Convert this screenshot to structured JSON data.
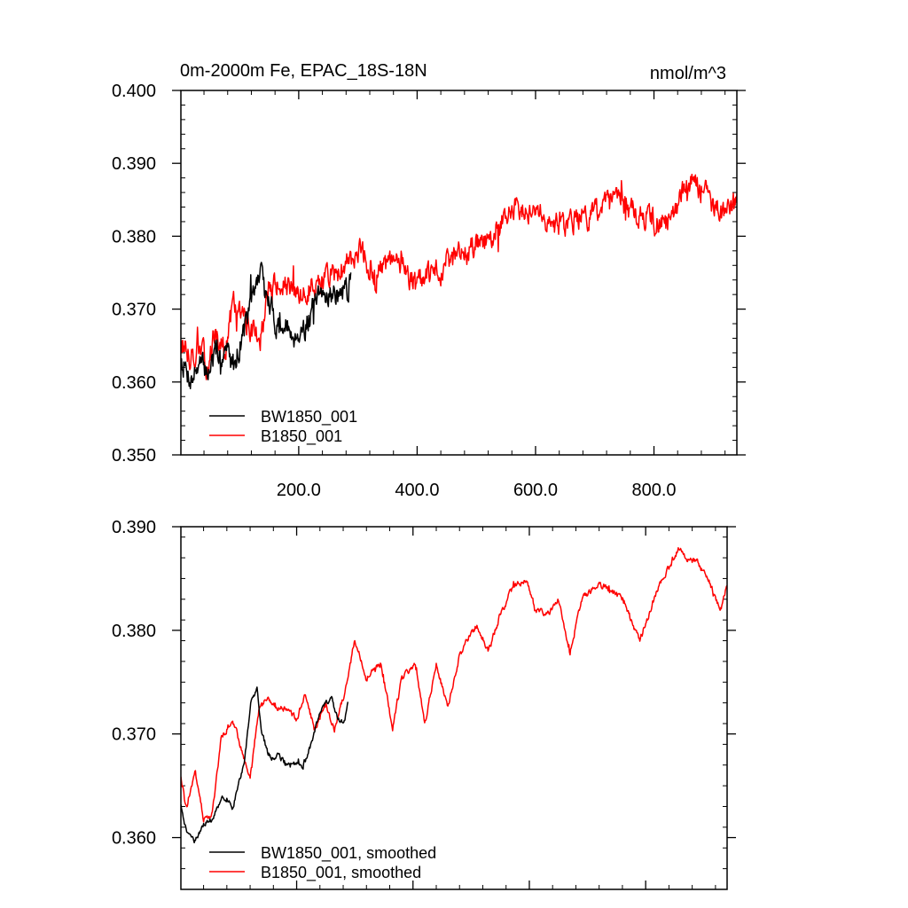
{
  "figure": {
    "title_left": "0m-2000m Fe, EPAC_18S-18N",
    "title_right": "nmol/m^3"
  },
  "chart_data": [
    {
      "type": "line",
      "panel": "top",
      "title": "0m-2000m Fe, EPAC_18S-18N",
      "units": "nmol/m^3",
      "xlim": [
        1,
        940
      ],
      "ylim": [
        0.35,
        0.4
      ],
      "x_ticks": [
        200,
        400,
        600,
        800
      ],
      "x_tick_labels": [
        "200.0",
        "400.0",
        "600.0",
        "800.0"
      ],
      "y_ticks": [
        0.35,
        0.36,
        0.37,
        0.38,
        0.39,
        0.4
      ],
      "y_tick_labels": [
        "0.350",
        "0.360",
        "0.370",
        "0.380",
        "0.390",
        "0.400"
      ],
      "legend": "bottom-left",
      "series": [
        {
          "name": "BW1850_001",
          "color": "#000000",
          "x_start": 1,
          "x_end": 288,
          "anchor_x": [
            1,
            10,
            20,
            30,
            45,
            60,
            75,
            90,
            105,
            120,
            135,
            145,
            160,
            175,
            190,
            210,
            230,
            250,
            270,
            288
          ],
          "anchor_y": [
            0.3635,
            0.3615,
            0.3605,
            0.3625,
            0.3615,
            0.3635,
            0.3645,
            0.3625,
            0.3665,
            0.3705,
            0.3755,
            0.3715,
            0.3685,
            0.3675,
            0.3665,
            0.3675,
            0.3705,
            0.3725,
            0.3715,
            0.3735
          ],
          "noise": 0.0025,
          "seed": 7
        },
        {
          "name": "B1850_001",
          "color": "#ff0000",
          "x_start": 1,
          "x_end": 940,
          "anchor_x": [
            1,
            15,
            30,
            45,
            60,
            75,
            90,
            105,
            120,
            135,
            150,
            175,
            200,
            225,
            250,
            275,
            300,
            330,
            360,
            400,
            440,
            480,
            520,
            560,
            600,
            630,
            670,
            700,
            740,
            780,
            820,
            860,
            880,
            900,
            920,
            940
          ],
          "anchor_y": [
            0.3655,
            0.3635,
            0.3645,
            0.3625,
            0.3665,
            0.3645,
            0.3705,
            0.369,
            0.3675,
            0.3665,
            0.373,
            0.373,
            0.3715,
            0.3735,
            0.3745,
            0.3755,
            0.3785,
            0.3745,
            0.3765,
            0.3735,
            0.3755,
            0.3775,
            0.3795,
            0.3835,
            0.3845,
            0.3815,
            0.3825,
            0.3835,
            0.3845,
            0.3825,
            0.3815,
            0.3875,
            0.3865,
            0.3845,
            0.3825,
            0.3845
          ],
          "noise": 0.0024,
          "seed": 13
        }
      ]
    },
    {
      "type": "line",
      "panel": "bottom",
      "xlim": [
        1,
        940
      ],
      "ylim": [
        0.355,
        0.39
      ],
      "x_ticks": [
        200,
        400,
        600,
        800
      ],
      "y_ticks": [
        0.36,
        0.37,
        0.38,
        0.39
      ],
      "y_tick_labels": [
        "0.360",
        "0.370",
        "0.380",
        "0.390"
      ],
      "legend": "bottom-left",
      "series": [
        {
          "name": "BW1850_001, smoothed",
          "color": "#000000",
          "x_start": 1,
          "x_end": 288,
          "anchor_x": [
            1,
            10,
            25,
            40,
            55,
            70,
            80,
            90,
            100,
            110,
            122,
            132,
            140,
            150,
            160,
            170,
            180,
            200,
            210,
            225,
            240,
            250,
            260,
            270,
            280,
            288
          ],
          "anchor_y": [
            0.3633,
            0.3607,
            0.3597,
            0.3613,
            0.3618,
            0.3637,
            0.3638,
            0.3628,
            0.3653,
            0.3673,
            0.3732,
            0.3743,
            0.3702,
            0.3683,
            0.3675,
            0.368,
            0.367,
            0.3672,
            0.3668,
            0.369,
            0.3722,
            0.373,
            0.3735,
            0.3715,
            0.3712,
            0.3728
          ],
          "noise": 0.00035,
          "seed": 21
        },
        {
          "name": "B1850_001, smoothed",
          "color": "#ff0000",
          "x_start": 1,
          "x_end": 940,
          "anchor_x": [
            1,
            10,
            25,
            40,
            55,
            70,
            90,
            105,
            120,
            135,
            150,
            165,
            180,
            200,
            215,
            230,
            250,
            265,
            285,
            300,
            320,
            345,
            365,
            380,
            405,
            420,
            440,
            460,
            480,
            495,
            510,
            530,
            550,
            570,
            595,
            610,
            630,
            650,
            670,
            690,
            720,
            760,
            790,
            820,
            860,
            870,
            890,
            910,
            930,
            940
          ],
          "anchor_y": [
            0.366,
            0.3628,
            0.3663,
            0.3618,
            0.3623,
            0.3695,
            0.3715,
            0.3685,
            0.3658,
            0.3723,
            0.3735,
            0.3725,
            0.3725,
            0.3715,
            0.3738,
            0.3705,
            0.3728,
            0.3705,
            0.3745,
            0.3792,
            0.3755,
            0.3768,
            0.3705,
            0.3752,
            0.3768,
            0.3708,
            0.3768,
            0.3725,
            0.3775,
            0.3792,
            0.3805,
            0.378,
            0.3815,
            0.384,
            0.385,
            0.382,
            0.3815,
            0.383,
            0.378,
            0.383,
            0.3845,
            0.383,
            0.379,
            0.384,
            0.3882,
            0.387,
            0.3865,
            0.3845,
            0.382,
            0.3845
          ],
          "noise": 0.0004,
          "seed": 34
        }
      ]
    }
  ]
}
